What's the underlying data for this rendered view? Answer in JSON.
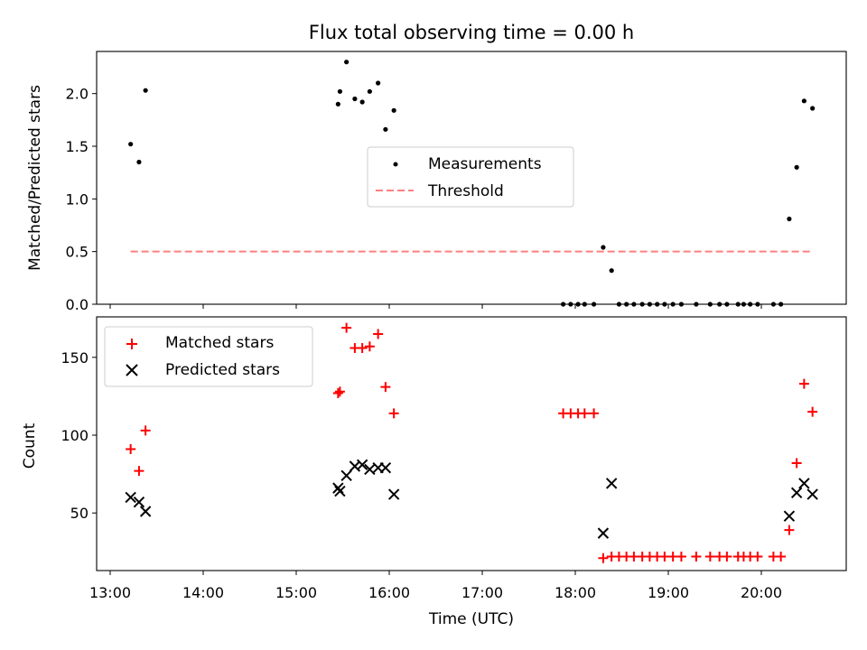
{
  "chart_data": {
    "type": "scatter",
    "title": "Flux total observing time = 0.00 h",
    "xlabel": "Time (UTC)",
    "x_ticks": [
      "13:00",
      "14:00",
      "15:00",
      "16:00",
      "17:00",
      "18:00",
      "19:00",
      "20:00"
    ],
    "panels": [
      {
        "ylabel": "Matched/Predicted stars",
        "ylim": [
          0,
          2.4
        ],
        "y_ticks": [
          "0.0",
          "0.5",
          "1.0",
          "1.5",
          "2.0"
        ],
        "legend": [
          "Measurements",
          "Threshold"
        ],
        "legend_position": "center-right",
        "series": [
          {
            "name": "Measurements",
            "marker": "dot",
            "color": "#000000",
            "x": [
              13.22,
              13.31,
              13.38,
              15.45,
              15.47,
              15.54,
              15.63,
              15.71,
              15.79,
              15.88,
              15.96,
              16.05,
              17.87,
              17.95,
              18.03,
              18.1,
              18.2,
              18.3,
              18.39,
              18.47,
              18.55,
              18.63,
              18.72,
              18.8,
              18.88,
              18.96,
              19.05,
              19.14,
              19.3,
              19.45,
              19.55,
              19.63,
              19.75,
              19.81,
              19.88,
              19.96,
              20.13,
              20.21,
              20.3,
              20.38,
              20.46,
              20.55
            ],
            "y": [
              1.52,
              1.35,
              2.03,
              1.9,
              2.02,
              2.3,
              1.95,
              1.92,
              2.02,
              2.1,
              1.66,
              1.84,
              0,
              0,
              0,
              0,
              0,
              0.54,
              0.32,
              0,
              0,
              0,
              0,
              0,
              0,
              0,
              0,
              0,
              0,
              0,
              0,
              0,
              0,
              0,
              0,
              0,
              0,
              0,
              0.81,
              1.3,
              1.93,
              1.86
            ]
          },
          {
            "name": "Threshold",
            "style": "dashed",
            "color": "#ff7f7f",
            "x": [
              13.22,
              20.55
            ],
            "y": [
              0.5,
              0.5
            ]
          }
        ]
      },
      {
        "ylabel": "Count",
        "ylim": [
          13,
          176
        ],
        "y_ticks": [
          "50",
          "100",
          "150"
        ],
        "legend": [
          "Matched stars",
          "Predicted stars"
        ],
        "legend_position": "top-left",
        "series": [
          {
            "name": "Matched stars",
            "marker": "plus",
            "color": "#ff0000",
            "x": [
              13.22,
              13.31,
              13.38,
              15.45,
              15.47,
              15.54,
              15.63,
              15.71,
              15.79,
              15.88,
              15.96,
              16.05,
              17.87,
              17.95,
              18.03,
              18.1,
              18.2,
              18.3,
              18.39,
              18.47,
              18.55,
              18.63,
              18.72,
              18.8,
              18.88,
              18.96,
              19.05,
              19.14,
              19.3,
              19.45,
              19.55,
              19.63,
              19.75,
              19.81,
              19.88,
              19.96,
              20.13,
              20.21,
              20.3,
              20.38,
              20.46,
              20.55
            ],
            "y": [
              91,
              77,
              103,
              127,
              128,
              169,
              156,
              156,
              157,
              165,
              131,
              114,
              114,
              114,
              114,
              114,
              114,
              21,
              22,
              22,
              22,
              22,
              22,
              22,
              22,
              22,
              22,
              22,
              22,
              22,
              22,
              22,
              22,
              22,
              22,
              22,
              22,
              22,
              39,
              82,
              133,
              115
            ]
          },
          {
            "name": "Predicted stars",
            "marker": "x",
            "color": "#000000",
            "x": [
              13.22,
              13.31,
              13.38,
              15.45,
              15.47,
              15.54,
              15.63,
              15.71,
              15.79,
              15.88,
              15.96,
              16.05,
              18.3,
              18.39,
              20.3,
              20.38,
              20.46,
              20.55
            ],
            "y": [
              60,
              57,
              51,
              66,
              64,
              74,
              80,
              81,
              78,
              79,
              79,
              62,
              37,
              69,
              48,
              63,
              69,
              62
            ]
          }
        ]
      }
    ]
  }
}
